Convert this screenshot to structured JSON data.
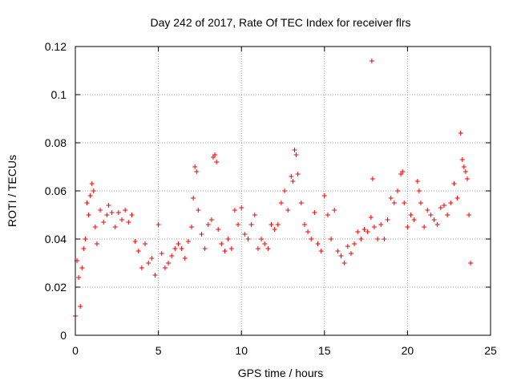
{
  "chart_data": {
    "type": "scatter",
    "title": "Day 242 of 2017, Rate Of TEC Index for receiver flrs",
    "xlabel": "GPS time / hours",
    "ylabel": "ROTI / TECUs",
    "xlim": [
      0,
      25
    ],
    "ylim": [
      0,
      0.12
    ],
    "x_ticks": [
      0,
      5,
      10,
      15,
      20,
      25
    ],
    "x_tick_labels": [
      "0",
      "5",
      "10",
      "15",
      "20",
      "25"
    ],
    "y_ticks": [
      0,
      0.02,
      0.04,
      0.06,
      0.08,
      0.1,
      0.12
    ],
    "y_tick_labels": [
      "0",
      "0.02",
      "0.04",
      "0.06",
      "0.08",
      "0.1",
      "0.12"
    ],
    "grid": true,
    "marker": "+",
    "marker_color": "#ff0000",
    "series": [
      {
        "name": "ROTI",
        "points": [
          [
            0.0,
            0.008
          ],
          [
            0.1,
            0.031
          ],
          [
            0.2,
            0.024
          ],
          [
            0.3,
            0.012
          ],
          [
            0.4,
            0.028
          ],
          [
            0.5,
            0.036
          ],
          [
            0.6,
            0.04
          ],
          [
            0.7,
            0.055
          ],
          [
            0.8,
            0.05
          ],
          [
            0.9,
            0.058
          ],
          [
            1.0,
            0.063
          ],
          [
            1.1,
            0.06
          ],
          [
            1.2,
            0.045
          ],
          [
            1.3,
            0.038
          ],
          [
            1.5,
            0.052
          ],
          [
            1.7,
            0.047
          ],
          [
            1.9,
            0.05
          ],
          [
            2.0,
            0.054
          ],
          [
            2.2,
            0.051
          ],
          [
            2.4,
            0.045
          ],
          [
            2.6,
            0.051
          ],
          [
            2.8,
            0.048
          ],
          [
            3.0,
            0.052
          ],
          [
            3.2,
            0.047
          ],
          [
            3.4,
            0.05
          ],
          [
            3.6,
            0.039
          ],
          [
            3.8,
            0.035
          ],
          [
            4.0,
            0.028
          ],
          [
            4.2,
            0.038
          ],
          [
            4.4,
            0.03
          ],
          [
            4.6,
            0.032
          ],
          [
            4.8,
            0.025
          ],
          [
            5.0,
            0.046
          ],
          [
            5.2,
            0.034
          ],
          [
            5.4,
            0.028
          ],
          [
            5.6,
            0.03
          ],
          [
            5.8,
            0.033
          ],
          [
            6.0,
            0.036
          ],
          [
            6.2,
            0.038
          ],
          [
            6.4,
            0.036
          ],
          [
            6.6,
            0.032
          ],
          [
            6.8,
            0.039
          ],
          [
            7.0,
            0.045
          ],
          [
            7.1,
            0.057
          ],
          [
            7.2,
            0.07
          ],
          [
            7.3,
            0.068
          ],
          [
            7.4,
            0.052
          ],
          [
            7.6,
            0.042
          ],
          [
            7.8,
            0.036
          ],
          [
            8.0,
            0.046
          ],
          [
            8.2,
            0.048
          ],
          [
            8.3,
            0.074
          ],
          [
            8.4,
            0.075
          ],
          [
            8.5,
            0.072
          ],
          [
            8.6,
            0.044
          ],
          [
            8.8,
            0.038
          ],
          [
            9.0,
            0.035
          ],
          [
            9.2,
            0.04
          ],
          [
            9.4,
            0.036
          ],
          [
            9.6,
            0.052
          ],
          [
            9.8,
            0.046
          ],
          [
            10.0,
            0.053
          ],
          [
            10.2,
            0.042
          ],
          [
            10.4,
            0.04
          ],
          [
            10.6,
            0.046
          ],
          [
            10.8,
            0.05
          ],
          [
            11.0,
            0.036
          ],
          [
            11.2,
            0.04
          ],
          [
            11.4,
            0.038
          ],
          [
            11.6,
            0.036
          ],
          [
            11.8,
            0.046
          ],
          [
            12.0,
            0.044
          ],
          [
            12.2,
            0.046
          ],
          [
            12.4,
            0.055
          ],
          [
            12.6,
            0.06
          ],
          [
            12.8,
            0.052
          ],
          [
            13.0,
            0.066
          ],
          [
            13.1,
            0.064
          ],
          [
            13.2,
            0.077
          ],
          [
            13.3,
            0.075
          ],
          [
            13.4,
            0.067
          ],
          [
            13.6,
            0.055
          ],
          [
            13.8,
            0.046
          ],
          [
            14.0,
            0.043
          ],
          [
            14.2,
            0.04
          ],
          [
            14.4,
            0.051
          ],
          [
            14.6,
            0.038
          ],
          [
            14.8,
            0.035
          ],
          [
            15.0,
            0.058
          ],
          [
            15.2,
            0.05
          ],
          [
            15.4,
            0.04
          ],
          [
            15.6,
            0.052
          ],
          [
            15.8,
            0.035
          ],
          [
            16.0,
            0.033
          ],
          [
            16.2,
            0.03
          ],
          [
            16.4,
            0.037
          ],
          [
            16.6,
            0.034
          ],
          [
            16.8,
            0.038
          ],
          [
            17.0,
            0.043
          ],
          [
            17.2,
            0.04
          ],
          [
            17.4,
            0.044
          ],
          [
            17.6,
            0.043
          ],
          [
            17.8,
            0.049
          ],
          [
            17.85,
            0.114
          ],
          [
            17.9,
            0.065
          ],
          [
            18.0,
            0.045
          ],
          [
            18.2,
            0.04
          ],
          [
            18.4,
            0.046
          ],
          [
            18.6,
            0.04
          ],
          [
            18.8,
            0.048
          ],
          [
            19.0,
            0.057
          ],
          [
            19.2,
            0.055
          ],
          [
            19.4,
            0.06
          ],
          [
            19.6,
            0.067
          ],
          [
            19.7,
            0.068
          ],
          [
            19.8,
            0.055
          ],
          [
            20.0,
            0.045
          ],
          [
            20.2,
            0.05
          ],
          [
            20.4,
            0.048
          ],
          [
            20.6,
            0.064
          ],
          [
            20.7,
            0.06
          ],
          [
            20.8,
            0.055
          ],
          [
            21.0,
            0.045
          ],
          [
            21.2,
            0.052
          ],
          [
            21.4,
            0.05
          ],
          [
            21.6,
            0.048
          ],
          [
            21.8,
            0.046
          ],
          [
            22.0,
            0.053
          ],
          [
            22.2,
            0.054
          ],
          [
            22.4,
            0.05
          ],
          [
            22.6,
            0.055
          ],
          [
            22.8,
            0.063
          ],
          [
            23.0,
            0.057
          ],
          [
            23.2,
            0.084
          ],
          [
            23.3,
            0.073
          ],
          [
            23.4,
            0.07
          ],
          [
            23.5,
            0.068
          ],
          [
            23.6,
            0.065
          ],
          [
            23.7,
            0.05
          ],
          [
            23.8,
            0.03
          ]
        ]
      }
    ]
  }
}
